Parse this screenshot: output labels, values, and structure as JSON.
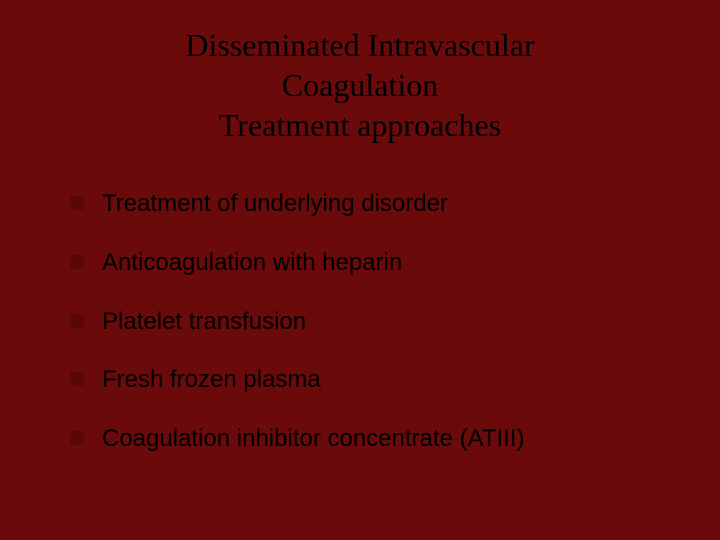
{
  "slide": {
    "background_color": "#6a0a0a",
    "title": {
      "line1": "Disseminated Intravascular",
      "line2": "Coagulation",
      "line3": "Treatment approaches",
      "color": "#000000",
      "fontsize": 32
    },
    "bullets": {
      "item_color": "#000000",
      "marker_color": "#5a0707",
      "fontsize": 24,
      "items": [
        "Treatment of underlying disorder",
        "Anticoagulation with heparin",
        "Platelet transfusion",
        "Fresh frozen plasma",
        "Coagulation inhibitor concentrate (ATIII)"
      ]
    }
  }
}
